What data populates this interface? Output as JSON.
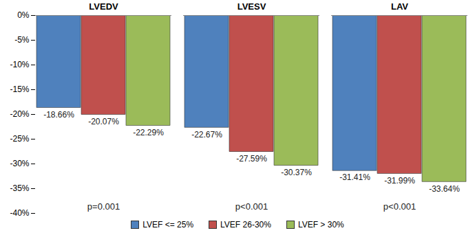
{
  "chart_data": {
    "type": "bar",
    "categories": [
      "LVEDV",
      "LVESV",
      "LAV"
    ],
    "series": [
      {
        "name": "LVEF <= 25%",
        "color": "#4f81bd",
        "values": [
          -18.66,
          -22.67,
          -31.41
        ],
        "value_labels": [
          "-18.66%",
          "-22.67%",
          "-31.41%"
        ]
      },
      {
        "name": "LVEF 26-30%",
        "color": "#c0504d",
        "values": [
          -20.07,
          -27.59,
          -31.99
        ],
        "value_labels": [
          "-20.07%",
          "-27.59%",
          "-31.99%"
        ]
      },
      {
        "name": "LVEF > 30%",
        "color": "#9bbb59",
        "values": [
          -22.29,
          -30.37,
          -33.64
        ],
        "value_labels": [
          "-22.29%",
          "-30.37%",
          "-33.64%"
        ]
      }
    ],
    "annotations": [
      "p=0.001",
      "p<0.001",
      "p<0.001"
    ],
    "ylim": [
      -40,
      0
    ],
    "yticks": [
      {
        "value": 0,
        "label": "0%"
      },
      {
        "value": -5,
        "label": "-5%"
      },
      {
        "value": -10,
        "label": "-10%"
      },
      {
        "value": -15,
        "label": "-15%"
      },
      {
        "value": -20,
        "label": "-20%"
      },
      {
        "value": -25,
        "label": "-25%"
      },
      {
        "value": -30,
        "label": "-30%"
      },
      {
        "value": -35,
        "label": "-35%"
      },
      {
        "value": -40,
        "label": "-40%"
      }
    ],
    "grid": false,
    "data_labels": true,
    "legend": "bottom"
  }
}
